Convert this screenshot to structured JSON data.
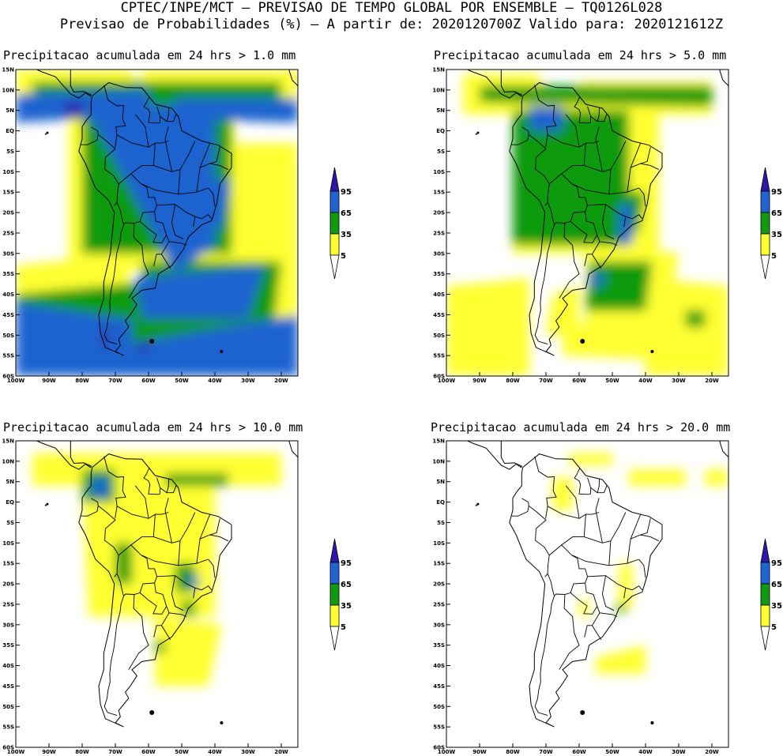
{
  "header": {
    "line1": "CPTEC/INPE/MCT – PREVISAO DE TEMPO GLOBAL POR ENSEMBLE – TQ0126L028",
    "line2": "Previsao de Probabilidades (%) –  A partir de: 2020120700Z  Valido para: 2020121612Z"
  },
  "panels": [
    {
      "title": "Precipitacao acumulada em 24 hrs > 1.0 mm",
      "level": 4
    },
    {
      "title": "Precipitacao acumulada em 24 hrs > 5.0 mm",
      "level": 3
    },
    {
      "title": "Precipitacao acumulada em 24 hrs > 10.0 mm",
      "level": 2
    },
    {
      "title": "Precipitacao acumulada em 24 hrs > 20.0 mm",
      "level": 1
    }
  ],
  "lat_labels": [
    "15N",
    "10N",
    "5N",
    "EQ",
    "5S",
    "10S",
    "15S",
    "20S",
    "25S",
    "30S",
    "35S",
    "40S",
    "45S",
    "50S",
    "55S",
    "60S"
  ],
  "lon_labels": [
    "100W",
    "90W",
    "80W",
    "70W",
    "60W",
    "50W",
    "40W",
    "30W",
    "20W"
  ],
  "colorbar": {
    "labels": [
      "95",
      "65",
      "35",
      "5"
    ],
    "colors": {
      "c5": "#ffff33",
      "c35": "#119a11",
      "c65": "#1f64d0",
      "c95": "#2a1aa6"
    }
  }
}
